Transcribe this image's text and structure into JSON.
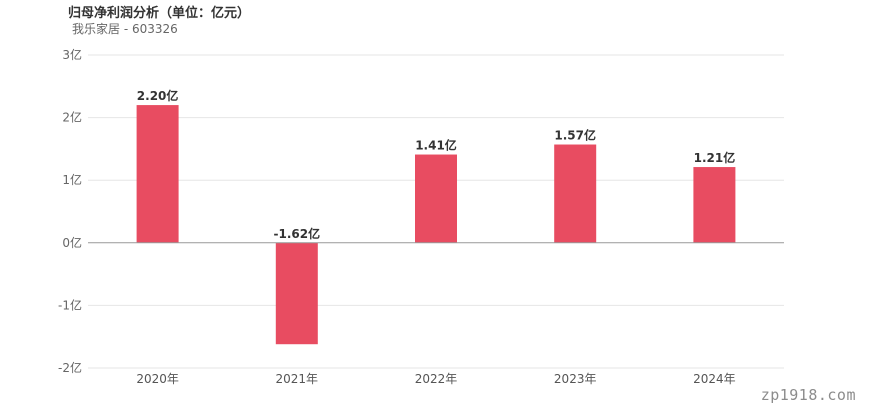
{
  "header": {
    "title": "归母净利润分析（单位：亿元）",
    "subtitle": "我乐家居 - 603326"
  },
  "watermark": "zp1918.com",
  "colors": {
    "bar": "#e84c61",
    "grid": "#e6e6e6",
    "zero_line": "#999999"
  },
  "chart_data": {
    "type": "bar",
    "title": "归母净利润分析（单位：亿元）",
    "subtitle": "我乐家居 - 603326",
    "categories": [
      "2020年",
      "2021年",
      "2022年",
      "2023年",
      "2024年"
    ],
    "values": [
      2.2,
      -1.62,
      1.41,
      1.57,
      1.21
    ],
    "data_labels": [
      "2.20亿",
      "-1.62亿",
      "1.41亿",
      "1.57亿",
      "1.21亿"
    ],
    "yticks": [
      3,
      2,
      1,
      0,
      -1,
      -2
    ],
    "ytick_labels": [
      "3亿",
      "2亿",
      "1亿",
      "0亿",
      "-1亿",
      "-2亿"
    ],
    "ylim": [
      -2,
      3
    ],
    "xlabel": "",
    "ylabel": "",
    "grid": true,
    "legend": "none"
  }
}
